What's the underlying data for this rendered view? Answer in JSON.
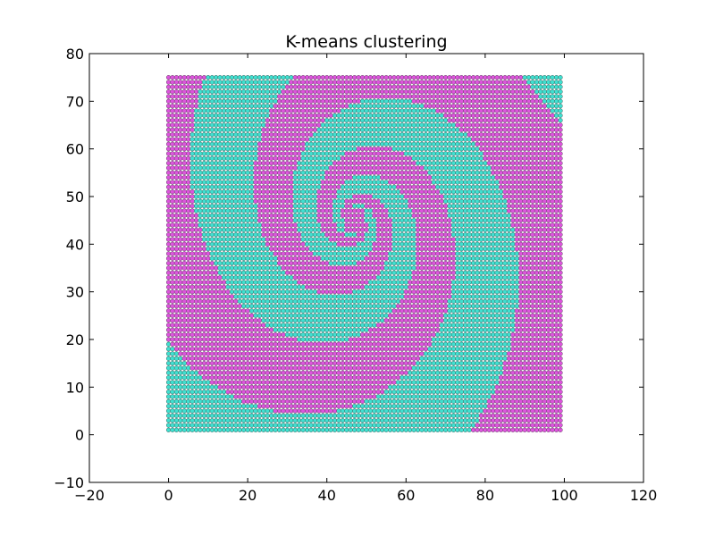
{
  "chart_data": {
    "type": "scatter",
    "title": "K-means clustering",
    "xlabel": "",
    "ylabel": "",
    "xlim": [
      -20,
      120
    ],
    "ylim": [
      -10,
      80
    ],
    "xticks": [
      -20,
      0,
      20,
      40,
      60,
      80,
      100,
      120
    ],
    "yticks": [
      -10,
      0,
      10,
      20,
      30,
      40,
      50,
      60,
      70,
      80
    ],
    "grid": false,
    "legend": "none",
    "grid_points": {
      "x_start": 0,
      "x_end": 99,
      "y_start": 1,
      "y_end": 75,
      "step": 1
    },
    "spiral_center": [
      47,
      45
    ],
    "series": [
      {
        "cluster": 0,
        "color": "#40e0d0",
        "description_of_region": "points outside the spiral arms"
      },
      {
        "cluster": 1,
        "color": "#dd55dd",
        "description_of_region": "spiral arms"
      }
    ],
    "cluster_colors": [
      "#40e0d0",
      "#dd55dd"
    ]
  }
}
